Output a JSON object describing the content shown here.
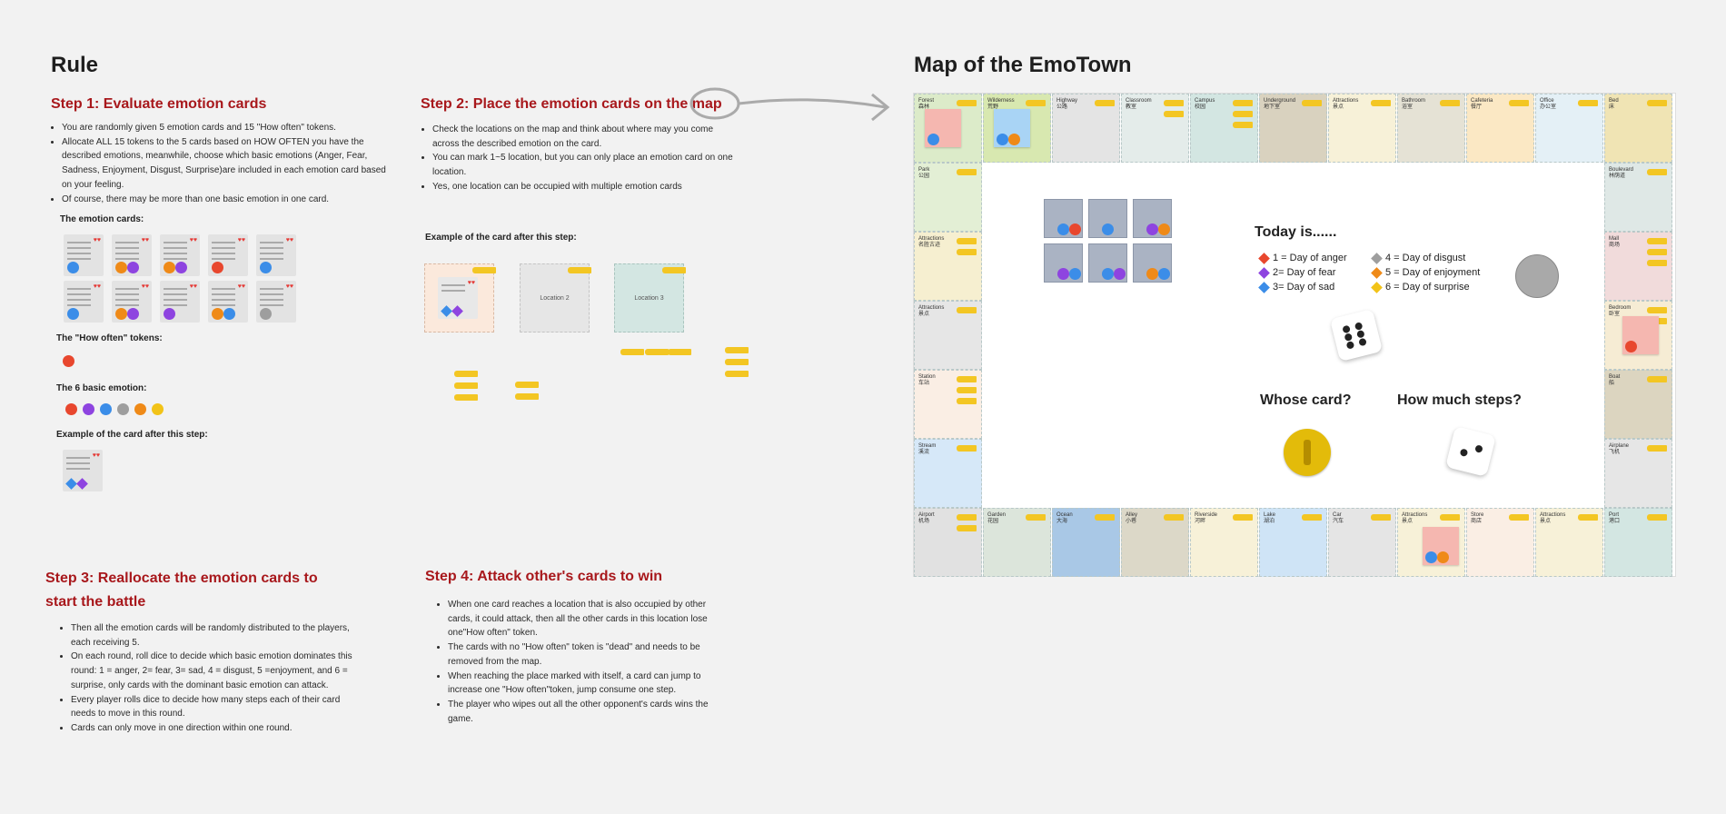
{
  "rule_title": "Rule",
  "step1": {
    "title": "Step 1: Evaluate emotion cards",
    "bullets": [
      "You are randomly given 5 emotion cards and 15 \"How often\" tokens.",
      "Allocate ALL 15 tokens to the 5 cards based on HOW OFTEN you have the described emotions, meanwhile, choose which basic emotions (Anger, Fear, Sadness, Enjoyment, Disgust, Surprise)are included in each emotion card based on your feeling.",
      "Of course, there may be more than one basic emotion in one card."
    ],
    "emotion_cards_label": "The emotion cards:",
    "tokens_label": "The \"How often\" tokens:",
    "basic_label": "The 6 basic emotion:",
    "example_label": "Example of the card after this step:"
  },
  "step2": {
    "title": "Step 2: Place the emotion cards on the map",
    "bullets": [
      "Check the locations on the map and think about where may you come across the described emotion on the card.",
      "You can mark 1~5 location, but you can only place an emotion card on one location.",
      "Yes, one location can be occupied with multiple emotion cards"
    ],
    "example_label": "Example of the card after this step:",
    "loc2": "Location 2",
    "loc3": "Location 3"
  },
  "step3": {
    "title": "Step 3: Reallocate the emotion cards to start the battle",
    "bullets": [
      "Then all the emotion cards will be randomly distributed to the players, each receiving 5.",
      "On each round, roll dice to decide which basic emotion dominates this round: 1 = anger, 2= fear, 3= sad, 4 = disgust, 5 =enjoyment, and 6 = surprise, only cards with the dominant basic emotion can attack.",
      "Every player rolls dice to decide how many steps each of their card needs to move in this round.",
      "Cards can only move in one direction within one round."
    ]
  },
  "step4": {
    "title": "Step 4: Attack other's cards to win",
    "bullets": [
      "When one card reaches a location that is also occupied by other cards, it could attack, then all the other cards in this location lose one\"How often\" token.",
      "The cards with no \"How often\" token is \"dead\" and needs to be removed from the map.",
      "When reaching the place marked with itself, a card can jump to increase one \"How often\"token, jump consume one step.",
      "The player who wipes out all the other opponent's cards wins the game."
    ]
  },
  "map_title": "Map of the EmoTown",
  "today": {
    "title": "Today is......",
    "items": [
      {
        "label": "1 = Day of anger",
        "color": "#e8472e"
      },
      {
        "label": "2= Day of fear",
        "color": "#8e44e0"
      },
      {
        "label": "3= Day of sad",
        "color": "#3b8de8"
      },
      {
        "label": "4 = Day of disgust",
        "color": "#9e9e9e"
      },
      {
        "label": "5 = Day of enjoyment",
        "color": "#ef8a18"
      },
      {
        "label": "6 = Day of surprise",
        "color": "#f2c318"
      }
    ]
  },
  "whose_card": "Whose card?",
  "how_much_steps": "How much steps?",
  "board": {
    "top": [
      {
        "en": "Forest",
        "cn": "森林",
        "color": "#dcebc9"
      },
      {
        "en": "Wilderness",
        "cn": "荒野",
        "color": "#d8e8b0"
      },
      {
        "en": "Highway",
        "cn": "公路",
        "color": "#e4e4e4"
      },
      {
        "en": "Classroom",
        "cn": "教室",
        "color": "#e4ecea"
      },
      {
        "en": "Campus",
        "cn": "校园",
        "color": "#d3e6e2"
      },
      {
        "en": "Underground",
        "cn": "地下室",
        "color": "#d9d2bf"
      },
      {
        "en": "Attractions",
        "cn": "景点",
        "color": "#f7f1d8"
      },
      {
        "en": "Bathroom",
        "cn": "浴室",
        "color": "#e5e2d5"
      },
      {
        "en": "Cafeteria",
        "cn": "餐厅",
        "color": "#fbe8c4"
      },
      {
        "en": "Office",
        "cn": "办公室",
        "color": "#e4f0f6"
      },
      {
        "en": "Bed",
        "cn": "床",
        "color": "#f0e4b4"
      }
    ],
    "left": [
      {
        "en": "Park",
        "cn": "公园",
        "color": "#e3efd5"
      },
      {
        "en": "Attractions",
        "cn": "名胜古迹",
        "color": "#f6efd0"
      },
      {
        "en": "Attractions",
        "cn": "景点",
        "color": "#e6e6e6"
      },
      {
        "en": "Station",
        "cn": "车站",
        "color": "#faeee4"
      },
      {
        "en": "Stream",
        "cn": "溪流",
        "color": "#d6e8f8"
      }
    ],
    "right": [
      {
        "en": "Boulevard",
        "cn": "林荫道",
        "color": "#dfe8e6"
      },
      {
        "en": "Mall",
        "cn": "商场",
        "color": "#f1dbdb"
      },
      {
        "en": "Bedroom",
        "cn": "卧室",
        "color": "#f6ecd4"
      },
      {
        "en": "Boat",
        "cn": "船",
        "color": "#dcd5c0"
      },
      {
        "en": "Airplane",
        "cn": "飞机",
        "color": "#e6e6e6"
      }
    ],
    "bottom": [
      {
        "en": "Airport",
        "cn": "机场",
        "color": "#e1e1e1"
      },
      {
        "en": "Garden",
        "cn": "花园",
        "color": "#dce5db"
      },
      {
        "en": "Ocean",
        "cn": "大海",
        "color": "#a9c8e6"
      },
      {
        "en": "Alley",
        "cn": "小巷",
        "color": "#dcd8c8"
      },
      {
        "en": "Riverside",
        "cn": "河畔",
        "color": "#f7f1d8"
      },
      {
        "en": "Lake",
        "cn": "湖泊",
        "color": "#cfe4f6"
      },
      {
        "en": "Car",
        "cn": "汽车",
        "color": "#e5e5e5"
      },
      {
        "en": "Attractions",
        "cn": "景点",
        "color": "#f7f1d8"
      },
      {
        "en": "Store",
        "cn": "商店",
        "color": "#faeee4"
      },
      {
        "en": "Attractions",
        "cn": "景点",
        "color": "#f7f1d8"
      },
      {
        "en": "Port",
        "cn": "港口",
        "color": "#d3e6e2"
      }
    ]
  }
}
